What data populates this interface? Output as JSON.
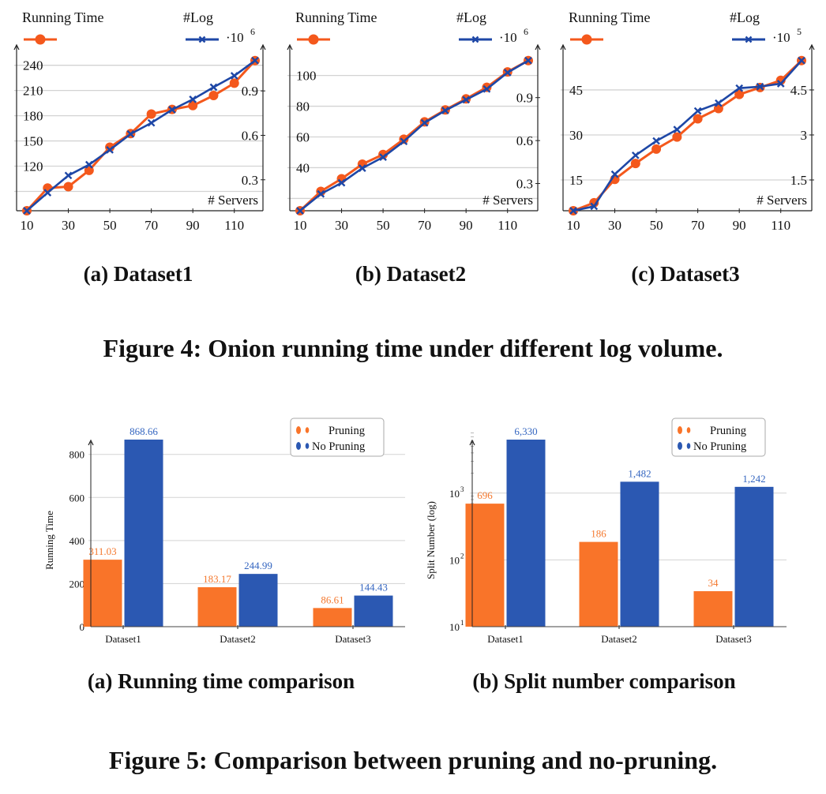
{
  "figure4": {
    "caption": "Figure 4: Onion running time under different log volume.",
    "subcaptions": [
      "(a) Dataset1",
      "(b) Dataset2",
      "(c) Dataset3"
    ]
  },
  "figure5": {
    "caption": "Figure 5: Comparison between pruning and no-pruning.",
    "subcaptions": [
      "(a) Running time comparison",
      "(b) Split number comparison"
    ]
  },
  "colors": {
    "running_time": "#F4581C",
    "log": "#1E47A6",
    "pruning": "#F97429",
    "no_pruning": "#2B58B2",
    "pruning_label": "#F4782E",
    "no_pruning_label": "#3566C0",
    "grid": "#d3d3d3",
    "axis": "#222222"
  },
  "chart_data": [
    {
      "id": "fig4a",
      "type": "line",
      "title": "(a) Dataset1",
      "xlabel": "# Servers",
      "x": [
        10,
        20,
        30,
        40,
        50,
        60,
        70,
        80,
        90,
        100,
        110,
        120
      ],
      "x_ticks": [
        10,
        30,
        50,
        70,
        90,
        110
      ],
      "legend": {
        "left": "Running Time",
        "right": "#Log",
        "right_multiplier": "·10",
        "right_exponent": "6"
      },
      "left_axis": {
        "ylim": [
          67,
          250
        ],
        "ticks": [
          90,
          120,
          150,
          180,
          210,
          240
        ],
        "tick_labels": [
          "",
          "120",
          "150",
          "180",
          "210",
          "240"
        ]
      },
      "right_axis": {
        "ylim": [
          0.091,
          1.12
        ],
        "ticks": [
          0.3,
          0.6,
          0.9
        ],
        "tick_labels": [
          "0.3",
          "0.6",
          "0.9"
        ]
      },
      "grid": true,
      "series": [
        {
          "name": "Running Time",
          "axis": "left",
          "marker": "circle",
          "values": [
            67,
            94,
            95.6,
            115,
            142.5,
            158.7,
            182,
            187.5,
            192,
            204,
            218.7,
            245.6
          ]
        },
        {
          "name": "#Log",
          "axis": "right",
          "marker": "x",
          "values": [
            0.091,
            0.213,
            0.329,
            0.402,
            0.502,
            0.609,
            0.684,
            0.773,
            0.843,
            0.925,
            1.002,
            1.105
          ]
        }
      ]
    },
    {
      "id": "fig4b",
      "type": "line",
      "title": "(b) Dataset2",
      "xlabel": "# Servers",
      "x": [
        10,
        20,
        30,
        40,
        50,
        60,
        70,
        80,
        90,
        100,
        110,
        120
      ],
      "x_ticks": [
        10,
        30,
        50,
        70,
        90,
        110
      ],
      "legend": {
        "left": "Running Time",
        "right": "#Log",
        "right_multiplier": "·10",
        "right_exponent": "6"
      },
      "left_axis": {
        "ylim": [
          12,
          112
        ],
        "ticks": [
          20,
          40,
          60,
          80,
          100
        ],
        "tick_labels": [
          "",
          "40",
          "60",
          "80",
          "100"
        ]
      },
      "right_axis": {
        "ylim": [
          0.11,
          1.17
        ],
        "ticks": [
          0.3,
          0.6,
          0.9
        ],
        "tick_labels": [
          "0.3",
          "0.6",
          "0.9"
        ]
      },
      "grid": true,
      "series": [
        {
          "name": "Running Time",
          "axis": "left",
          "marker": "circle",
          "values": [
            12,
            24.6,
            32.8,
            42.3,
            48.6,
            58.5,
            69.8,
            77.6,
            84.8,
            92.3,
            102.3,
            109.7
          ]
        },
        {
          "name": "#Log",
          "axis": "right",
          "marker": "x",
          "values": [
            0.11,
            0.227,
            0.305,
            0.407,
            0.484,
            0.594,
            0.724,
            0.81,
            0.885,
            0.96,
            1.075,
            1.159
          ]
        }
      ]
    },
    {
      "id": "fig4c",
      "type": "line",
      "title": "(c) Dataset3",
      "xlabel": "# Servers",
      "x": [
        10,
        20,
        30,
        40,
        50,
        60,
        70,
        80,
        90,
        100,
        110,
        120
      ],
      "x_ticks": [
        10,
        30,
        50,
        70,
        90,
        110
      ],
      "legend": {
        "left": "Running Time",
        "right": "#Log",
        "right_multiplier": "·10",
        "right_exponent": "5"
      },
      "left_axis": {
        "ylim": [
          4.74,
          55.5
        ],
        "ticks": [
          15,
          30,
          45
        ],
        "tick_labels": [
          "15",
          "30",
          "45"
        ]
      },
      "right_axis": {
        "ylim": [
          0.474,
          5.55
        ],
        "ticks": [
          1.5,
          3,
          4.5
        ],
        "tick_labels": [
          "1.5",
          "3",
          "4.5"
        ]
      },
      "grid": true,
      "series": [
        {
          "name": "Running Time",
          "axis": "left",
          "marker": "circle",
          "values": [
            4.74,
            7.4,
            15.2,
            20.5,
            25.3,
            29.3,
            35.4,
            38.8,
            43.5,
            45.8,
            48.2,
            54.8
          ]
        },
        {
          "name": "#Log",
          "axis": "right",
          "marker": "x",
          "values": [
            0.474,
            0.62,
            1.69,
            2.32,
            2.8,
            3.18,
            3.8,
            4.06,
            4.56,
            4.61,
            4.71,
            5.48
          ]
        }
      ]
    },
    {
      "id": "fig5a",
      "type": "bar",
      "title": "(a) Running time comparison",
      "ylabel": "Running Time",
      "xlabel": "",
      "categories": [
        "Dataset1",
        "Dataset2",
        "Dataset3"
      ],
      "ylim": [
        0,
        880
      ],
      "y_ticks": [
        0,
        200,
        400,
        600,
        800
      ],
      "y_tick_labels": [
        "0",
        "200",
        "400",
        "600",
        "800"
      ],
      "log_scale": false,
      "grid": true,
      "legend_position": "top-right",
      "series": [
        {
          "name": "Pruning",
          "values": [
            311.03,
            183.17,
            86.61
          ],
          "labels": [
            "311.03",
            "183.17",
            "86.61"
          ]
        },
        {
          "name": "No Pruning",
          "values": [
            868.66,
            244.99,
            144.43
          ],
          "labels": [
            "868.66",
            "244.99",
            "144.43"
          ]
        }
      ]
    },
    {
      "id": "fig5b",
      "type": "bar",
      "title": "(b) Split number comparison",
      "ylabel": "Split Number (log)",
      "xlabel": "",
      "categories": [
        "Dataset1",
        "Dataset2",
        "Dataset3"
      ],
      "ylim": [
        10,
        6330
      ],
      "y_ticks": [
        10,
        100,
        1000
      ],
      "y_tick_labels": [
        [
          "10",
          "1"
        ],
        [
          "10",
          "2"
        ],
        [
          "10",
          "3"
        ]
      ],
      "log_scale": true,
      "grid": true,
      "legend_position": "top-right",
      "series": [
        {
          "name": "Pruning",
          "values": [
            696,
            186,
            34
          ],
          "labels": [
            "696",
            "186",
            "34"
          ]
        },
        {
          "name": "No Pruning",
          "values": [
            6330,
            1482,
            1242
          ],
          "labels": [
            "6,330",
            "1,482",
            "1,242"
          ]
        }
      ]
    }
  ]
}
